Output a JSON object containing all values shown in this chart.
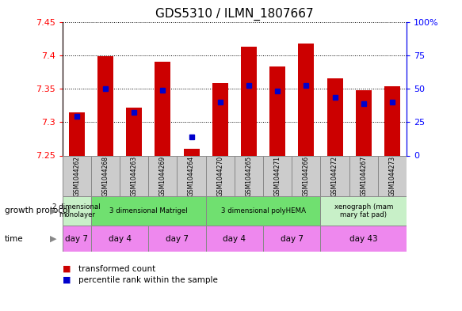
{
  "title": "GDS5310 / ILMN_1807667",
  "samples": [
    "GSM1044262",
    "GSM1044268",
    "GSM1044263",
    "GSM1044269",
    "GSM1044264",
    "GSM1044270",
    "GSM1044265",
    "GSM1044271",
    "GSM1044266",
    "GSM1044272",
    "GSM1044267",
    "GSM1044273"
  ],
  "transformed_count": [
    7.315,
    7.398,
    7.322,
    7.39,
    7.26,
    7.358,
    7.413,
    7.383,
    7.418,
    7.365,
    7.348,
    7.353
  ],
  "percentile_rank": [
    7.308,
    7.35,
    7.315,
    7.348,
    7.278,
    7.33,
    7.355,
    7.347,
    7.355,
    7.337,
    7.328,
    7.33
  ],
  "ylim": [
    7.25,
    7.45
  ],
  "yticks": [
    7.25,
    7.3,
    7.35,
    7.4,
    7.45
  ],
  "y2ticks_vals": [
    0,
    25,
    50,
    75,
    100
  ],
  "y2ticks_labels": [
    "0",
    "25",
    "50",
    "75",
    "100%"
  ],
  "bar_color": "#CC0000",
  "dot_color": "#0000CC",
  "bar_bottom": 7.25,
  "growth_protocol_groups": [
    {
      "label": "2 dimensional\nmonolayer",
      "start": 0,
      "end": 1,
      "color": "#c8f0c8"
    },
    {
      "label": "3 dimensional Matrigel",
      "start": 1,
      "end": 5,
      "color": "#70e070"
    },
    {
      "label": "3 dimensional polyHEMA",
      "start": 5,
      "end": 9,
      "color": "#70e070"
    },
    {
      "label": "xenograph (mam\nmary fat pad)",
      "start": 9,
      "end": 12,
      "color": "#c8f0c8"
    }
  ],
  "time_groups": [
    {
      "label": "day 7",
      "start": 0,
      "end": 1,
      "color": "#ee88ee"
    },
    {
      "label": "day 4",
      "start": 1,
      "end": 3,
      "color": "#ee88ee"
    },
    {
      "label": "day 7",
      "start": 3,
      "end": 5,
      "color": "#ee88ee"
    },
    {
      "label": "day 4",
      "start": 5,
      "end": 7,
      "color": "#ee88ee"
    },
    {
      "label": "day 7",
      "start": 7,
      "end": 9,
      "color": "#ee88ee"
    },
    {
      "label": "day 43",
      "start": 9,
      "end": 12,
      "color": "#ee88ee"
    }
  ],
  "legend_items": [
    {
      "label": "transformed count",
      "color": "#CC0000"
    },
    {
      "label": "percentile rank within the sample",
      "color": "#0000CC"
    }
  ],
  "left_labels": [
    "growth protocol",
    "time"
  ],
  "bar_width": 0.55,
  "dot_size": 5,
  "sample_box_color": "#cccccc",
  "sample_box_edge": "#888888"
}
